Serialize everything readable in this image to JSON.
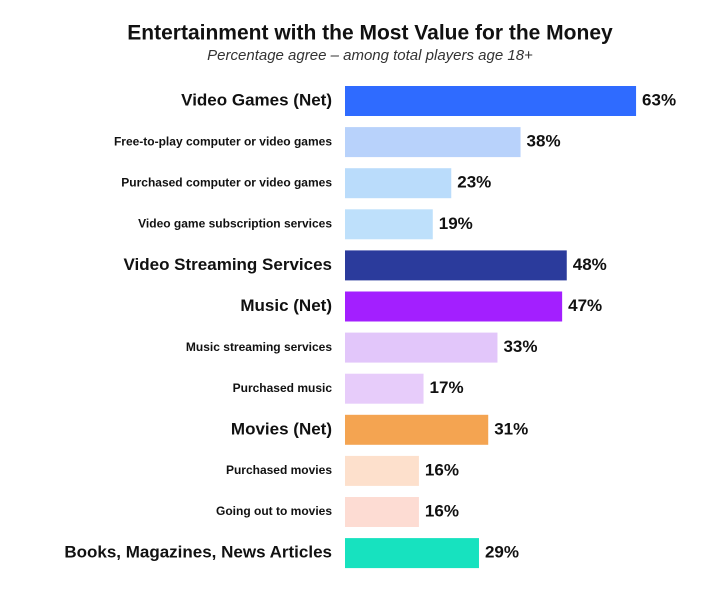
{
  "chart_data": {
    "type": "bar",
    "orientation": "horizontal",
    "title": "Entertainment with the Most Value for the Money",
    "subtitle": "Percentage agree – among total players age 18+",
    "categories": [
      "Video Games (Net)",
      "Free-to-play computer or video games",
      "Purchased computer or video games",
      "Video game subscription services",
      "Video Streaming Services",
      "Music (Net)",
      "Music streaming services",
      "Purchased music",
      "Movies (Net)",
      "Purchased movies",
      "Going out to movies",
      "Books, Magazines, News Articles"
    ],
    "values": [
      63,
      38,
      23,
      19,
      48,
      47,
      33,
      17,
      31,
      16,
      16,
      29
    ],
    "value_labels": [
      "63%",
      "38%",
      "23%",
      "19%",
      "48%",
      "47%",
      "33%",
      "17%",
      "31%",
      "16%",
      "16%",
      "29%"
    ],
    "colors": [
      "#2f6bff",
      "#b8d2fb",
      "#badcfb",
      "#bee0fb",
      "#2b3b9c",
      "#a31fff",
      "#e2c6fa",
      "#e7ccfa",
      "#f4a451",
      "#fde0cc",
      "#fddcd3",
      "#17e2bf"
    ],
    "emphasized": [
      true,
      false,
      false,
      false,
      true,
      true,
      false,
      false,
      true,
      false,
      false,
      true
    ]
  }
}
